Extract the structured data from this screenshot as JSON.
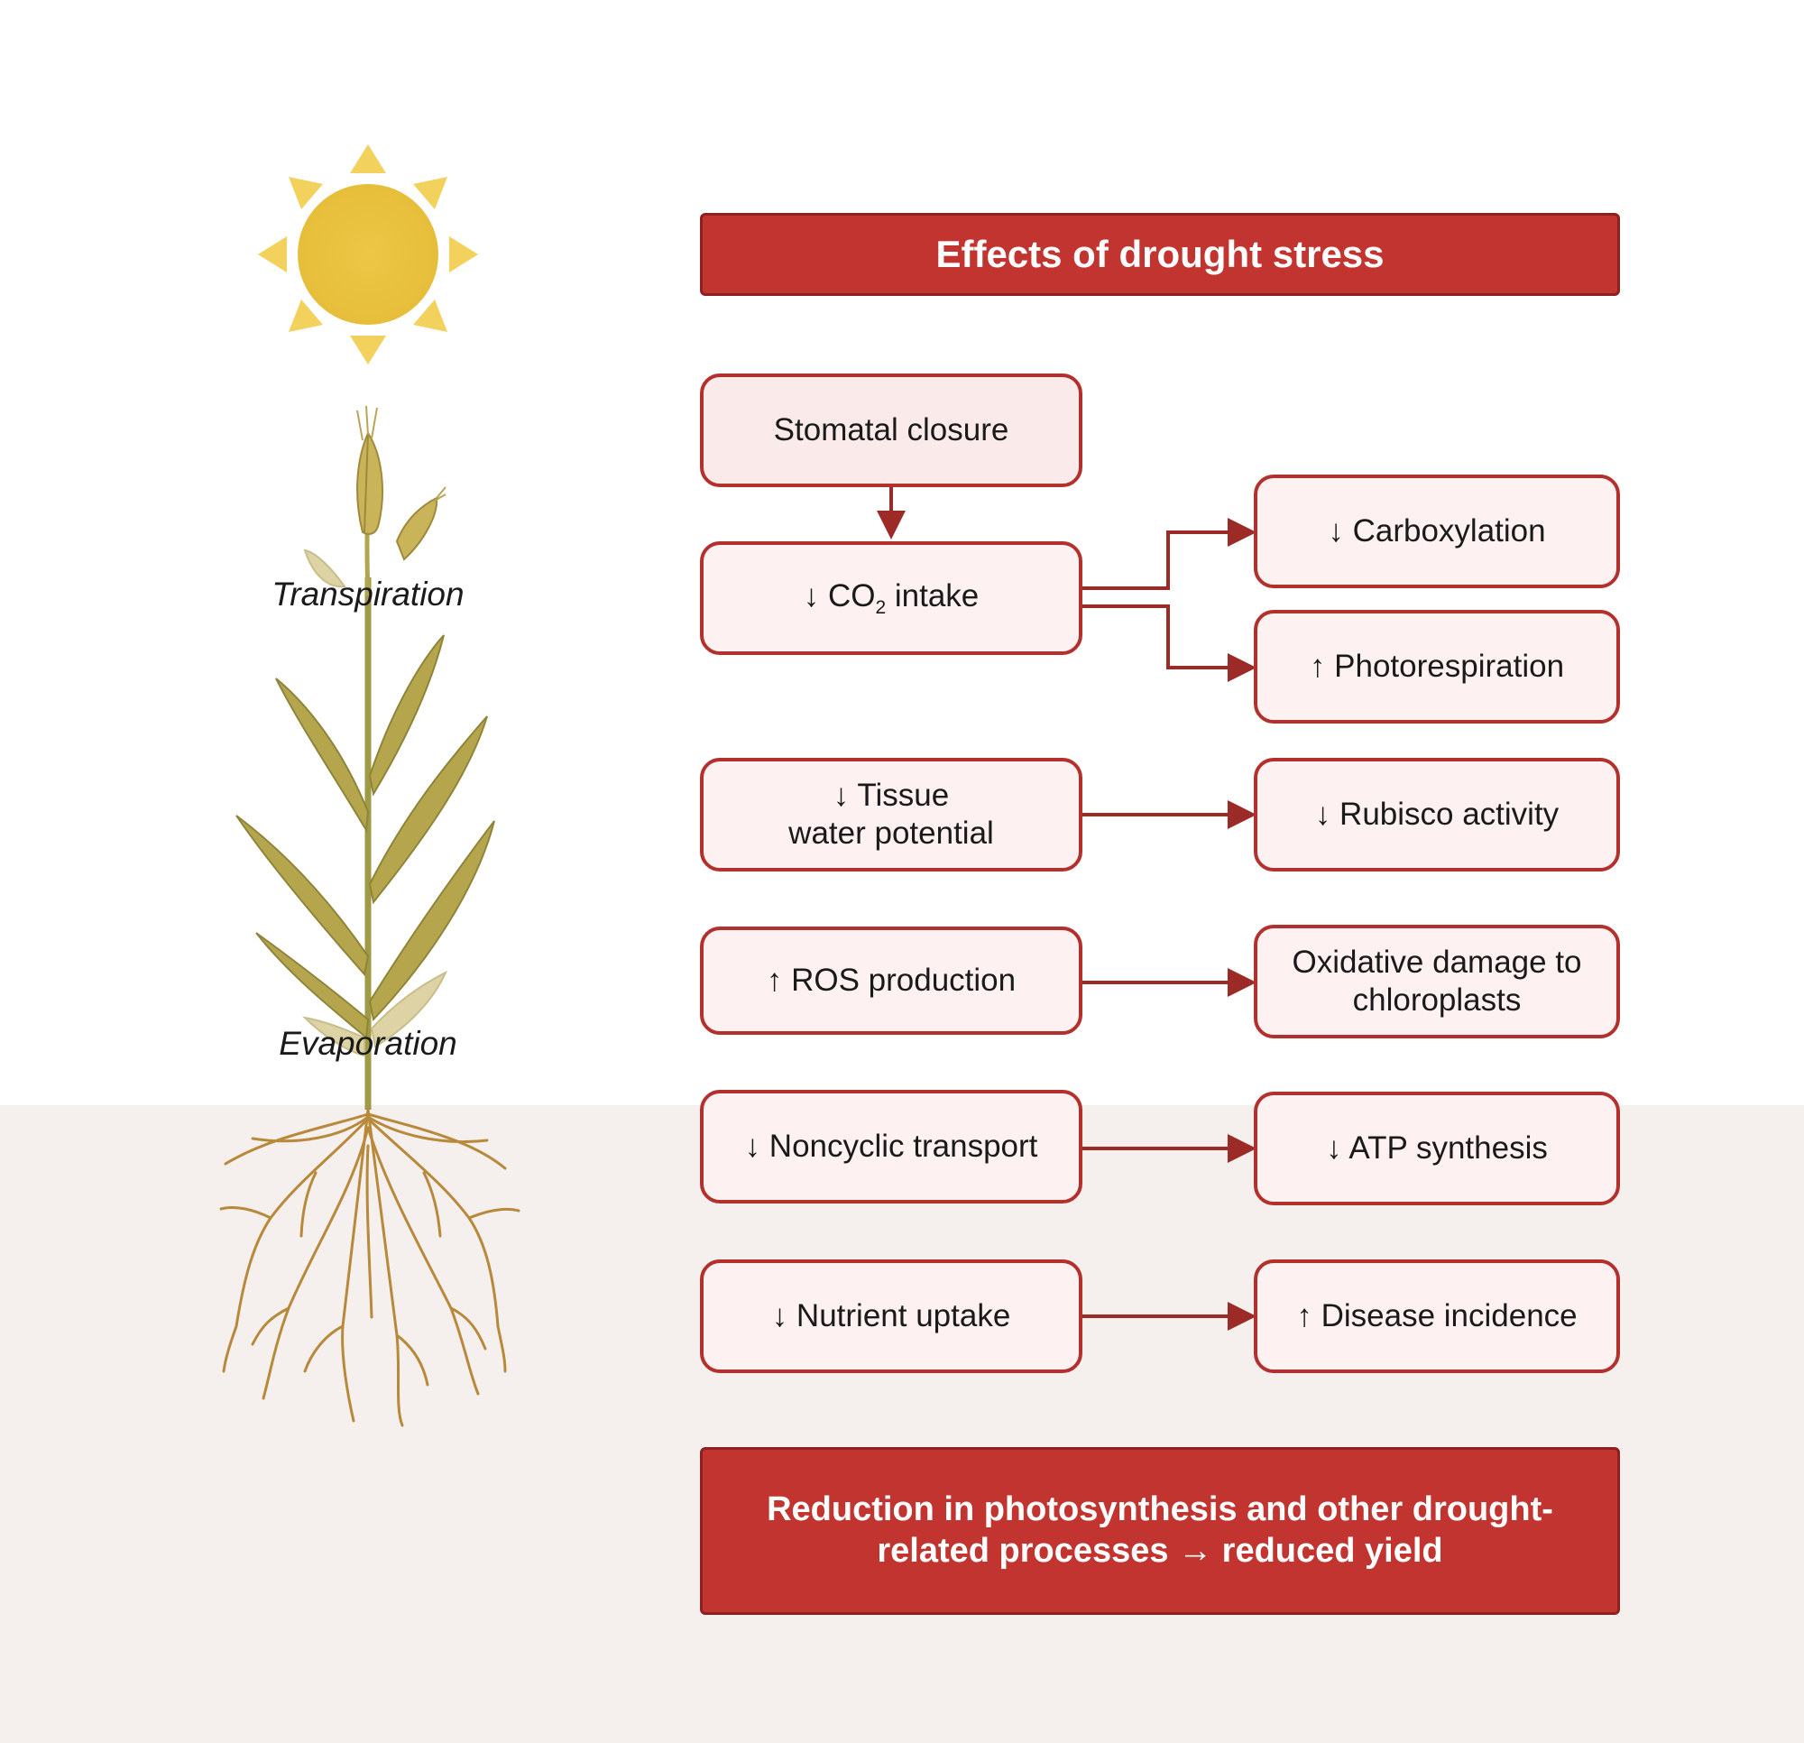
{
  "colors": {
    "accent_red": "#c1342f",
    "box_fill": "#fbeaea",
    "box_border": "#b3312d",
    "arrow": "#9c2a26",
    "sun": "#e8c43f",
    "soil": "#f5f0ee",
    "plant": "#b5a64e",
    "root": "#b8893a"
  },
  "illustration": {
    "sun_icon": "sun-icon",
    "plant_icon": "wheat-plant-icon",
    "labels": {
      "transpiration": "Transpiration",
      "evaporation": "Evaporation"
    }
  },
  "header": {
    "title": "Effects of drought stress"
  },
  "left_boxes": {
    "stomatal": "Stomatal closure",
    "co2_arrow": "↓",
    "co2_prefix": "CO",
    "co2_sub": "2",
    "co2_suffix": " intake",
    "tissue_line1": "↓ Tissue",
    "tissue_line2": "water potential",
    "ros": "↑ ROS production",
    "noncyclic": "↓ Noncyclic transport",
    "nutrient": "↓ Nutrient uptake"
  },
  "right_boxes": {
    "carboxylation": "↓ Carboxylation",
    "photorespiration": "↑ Photorespiration",
    "rubisco": "↓ Rubisco activity",
    "oxidative_line1": "Oxidative damage to",
    "oxidative_line2": "chloroplasts",
    "atp": "↓ ATP synthesis",
    "disease": "↑ Disease incidence"
  },
  "footer": {
    "line1": "Reduction in photosynthesis and other drought-",
    "line2": "related processes → reduced yield"
  }
}
